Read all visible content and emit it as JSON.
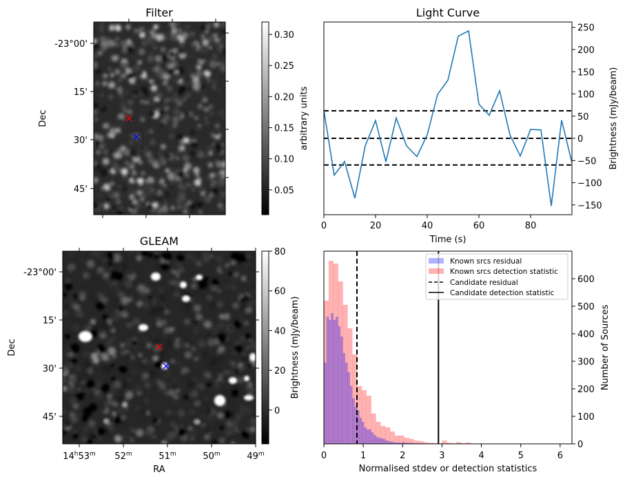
{
  "chart_data": [
    {
      "type": "heatmap",
      "title": "Filter",
      "xlabel": "",
      "ylabel": "Dec",
      "yticks": [
        "-23°00'",
        "15'",
        "30'",
        "45'"
      ],
      "colorbar": {
        "label": "arbitrary units",
        "range": [
          0.01,
          0.32
        ],
        "ticks": [
          "0.05",
          "0.10",
          "0.15",
          "0.20",
          "0.25",
          "0.30"
        ],
        "cmap": "gray"
      },
      "markers": [
        {
          "name": "red-cross",
          "color": "#ff0000",
          "symbol": "x"
        },
        {
          "name": "blue-cross",
          "color": "#0000ff",
          "symbol": "x"
        }
      ]
    },
    {
      "type": "line",
      "title": "Light Curve",
      "xlabel": "Time (s)",
      "ylabel": "Brightness (mJy/beam)",
      "xlim": [
        0,
        96
      ],
      "ylim": [
        -172,
        262
      ],
      "xticks": [
        0,
        20,
        40,
        60,
        80
      ],
      "yticks": [
        -150,
        -100,
        -50,
        0,
        50,
        100,
        150,
        200,
        250
      ],
      "ytick_labels": [
        "−150",
        "−100",
        "−50",
        "0",
        "50",
        "100",
        "150",
        "200",
        "250"
      ],
      "series": [
        {
          "name": "light-curve",
          "color": "#1f77b4",
          "x": [
            0,
            4,
            8,
            12,
            16,
            20,
            24,
            28,
            32,
            36,
            40,
            44,
            48,
            52,
            56,
            60,
            64,
            68,
            72,
            76,
            80,
            84,
            88,
            92,
            96
          ],
          "y": [
            63,
            -83,
            -52,
            -135,
            -17,
            40,
            -53,
            46,
            -17,
            -41,
            8,
            99,
            131,
            230,
            242,
            77,
            52,
            107,
            8,
            -40,
            20,
            19,
            -152,
            41,
            -55
          ]
        }
      ],
      "hlines": [
        {
          "y": 62,
          "style": "dashed",
          "color": "#000000"
        },
        {
          "y": 0,
          "style": "dashed",
          "color": "#000000"
        },
        {
          "y": -60,
          "style": "dashed",
          "color": "#000000"
        }
      ],
      "grid": false
    },
    {
      "type": "heatmap",
      "title": "GLEAM",
      "xlabel": "RA",
      "ylabel": "Dec",
      "xticks": [
        {
          "base": "14",
          "sup1": "h",
          "mid": "53",
          "sup2": "m"
        },
        {
          "base": "",
          "sup1": "",
          "mid": "52",
          "sup2": "m"
        },
        {
          "base": "",
          "sup1": "",
          "mid": "51",
          "sup2": "m"
        },
        {
          "base": "",
          "sup1": "",
          "mid": "50",
          "sup2": "m"
        },
        {
          "base": "",
          "sup1": "",
          "mid": "49",
          "sup2": "m"
        }
      ],
      "yticks": [
        "-23°00'",
        "15'",
        "30'",
        "45'"
      ],
      "colorbar": {
        "label": "Brightness (mJy/beam)",
        "range": [
          -17,
          80
        ],
        "ticks": [
          "0",
          "20",
          "40",
          "60",
          "80"
        ],
        "cmap": "gray"
      },
      "markers": [
        {
          "name": "red-cross",
          "color": "#ff0000",
          "symbol": "x"
        },
        {
          "name": "blue-cross",
          "color": "#0000ff",
          "symbol": "x"
        }
      ]
    },
    {
      "type": "bar",
      "subtype": "histogram",
      "title": "",
      "xlabel": "Normalised stdev or detection statistics",
      "ylabel": "Number of Sources",
      "xlim": [
        0,
        6.3
      ],
      "ylim": [
        0,
        700
      ],
      "xticks": [
        0,
        1,
        2,
        3,
        4,
        5,
        6
      ],
      "yticks": [
        0,
        100,
        200,
        300,
        400,
        500,
        600
      ],
      "series": [
        {
          "name": "Known srcs detection statistic",
          "color": "#ff0000",
          "alpha": 0.3,
          "bin_width": 0.12,
          "bin_start": 0,
          "values": [
            520,
            665,
            655,
            590,
            505,
            420,
            325,
            210,
            195,
            175,
            110,
            80,
            65,
            60,
            45,
            30,
            30,
            22,
            18,
            12,
            10,
            6,
            4,
            3,
            2,
            12,
            4,
            2,
            6,
            2,
            5,
            1,
            1,
            1,
            1,
            1,
            1,
            1,
            1,
            1,
            0,
            0,
            0,
            1,
            1,
            0,
            0,
            0,
            1,
            0,
            0,
            0,
            1,
            1,
            0,
            0,
            0,
            0,
            0,
            0,
            0,
            0,
            0,
            0,
            0,
            0,
            0,
            1,
            0,
            0,
            0,
            0,
            0,
            0,
            0,
            0,
            0,
            0,
            0,
            0,
            0,
            0,
            0,
            0,
            0,
            0,
            0,
            0,
            0,
            0,
            0,
            0,
            0,
            0,
            0,
            0,
            0,
            0,
            0,
            0,
            0,
            0,
            0,
            0,
            0,
            0,
            0,
            0,
            0
          ]
        },
        {
          "name": "Known srcs residual",
          "color": "#0000ff",
          "alpha": 0.3,
          "bin_width": 0.06,
          "bin_start": 0,
          "values": [
            295,
            462,
            450,
            475,
            450,
            462,
            427,
            390,
            330,
            295,
            260,
            210,
            165,
            135,
            122,
            95,
            80,
            60,
            52,
            52,
            42,
            32,
            25,
            22,
            20,
            18,
            12,
            10,
            8,
            6,
            5,
            5,
            4,
            6,
            4,
            3,
            4,
            3,
            2,
            2,
            2,
            2,
            1,
            1,
            1,
            1,
            1,
            1,
            0,
            0
          ]
        }
      ],
      "vlines": [
        {
          "x": 0.84,
          "label": "Candidate residual",
          "style": "dashed",
          "color": "#000000"
        },
        {
          "x": 2.91,
          "label": "Candidate detection statistic",
          "style": "solid",
          "color": "#000000"
        }
      ],
      "legend": {
        "position": "top-right",
        "entries": [
          "Known srcs residual",
          "Known srcs detection statistic",
          "Candidate residual",
          "Candidate detection statistic"
        ]
      }
    }
  ]
}
